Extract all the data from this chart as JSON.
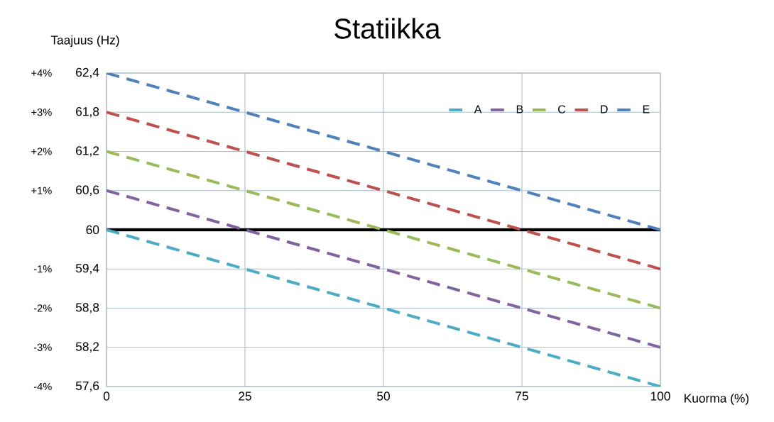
{
  "chart_data": {
    "type": "line",
    "title": "Statiikka",
    "xlabel": "Kuorma (%)",
    "ylabel": "Taajuus (Hz)",
    "x": [
      0,
      100
    ],
    "series": [
      {
        "name": "A",
        "color": "#4bacc6",
        "values": [
          60,
          57.6
        ]
      },
      {
        "name": "B",
        "color": "#8064a2",
        "values": [
          60.6,
          58.2
        ]
      },
      {
        "name": "C",
        "color": "#9bbb59",
        "values": [
          61.2,
          58.8
        ]
      },
      {
        "name": "D",
        "color": "#c0504d",
        "values": [
          61.8,
          59.4
        ]
      },
      {
        "name": "E",
        "color": "#4f81bd",
        "values": [
          62.4,
          60
        ]
      }
    ],
    "xlim": [
      0,
      100
    ],
    "xticks": [
      0,
      25,
      50,
      75,
      100
    ],
    "ylim": [
      57.6,
      62.4
    ],
    "yticks": [
      {
        "value": 57.6,
        "label": "57,6"
      },
      {
        "value": 58.2,
        "label": "58,2"
      },
      {
        "value": 58.8,
        "label": "58,8"
      },
      {
        "value": 59.4,
        "label": "59,4"
      },
      60,
      {
        "value": 60.6,
        "label": "60,6"
      },
      {
        "value": 61.2,
        "label": "61,2"
      },
      {
        "value": 61.8,
        "label": "61,8"
      },
      {
        "value": 62.4,
        "label": "62,4"
      }
    ],
    "y2lim": [
      -4,
      4
    ],
    "y2ticks": [
      {
        "value": -4,
        "label": "-4%"
      },
      {
        "value": -3,
        "label": "-3%"
      },
      {
        "value": -2,
        "label": "-2%"
      },
      {
        "value": -1,
        "label": "-1%"
      },
      {
        "value": 1,
        "label": "+1%"
      },
      {
        "value": 2,
        "label": "+2%"
      },
      {
        "value": 3,
        "label": "+3%"
      },
      {
        "value": 4,
        "label": "+4%"
      }
    ],
    "ref_lines": [
      {
        "axis": "y",
        "value": 60,
        "color": "#000000"
      }
    ],
    "grid": true,
    "legend": "top right",
    "line_style": "dashed",
    "marker": "none"
  }
}
